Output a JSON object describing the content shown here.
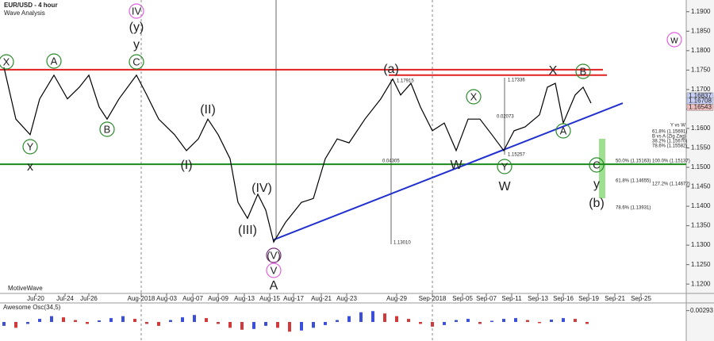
{
  "chart_data": [
    {
      "type": "line",
      "title": "EUR/USD - 4 hour",
      "subtitle": "Wave Analysis",
      "watermark": "MotiveWave",
      "x": [
        1,
        4,
        7.6,
        10,
        13.6,
        17,
        20,
        22.4,
        25,
        27,
        30,
        34.4,
        37,
        40,
        44,
        47,
        50,
        52.4,
        55,
        58,
        60,
        62.4,
        65,
        67,
        69,
        72,
        76,
        79,
        82,
        85,
        88,
        92,
        96,
        99,
        101,
        103.6,
        106,
        109,
        112,
        115,
        118,
        121,
        124,
        127,
        129.6,
        132.4,
        136,
        138,
        140,
        142,
        145,
        147,
        149
      ],
      "series": [
        {
          "color": "#000000",
          "values": [
            1.1757,
            1.1624,
            1.1584,
            1.1676,
            1.1737,
            1.1676,
            1.1706,
            1.1737,
            1.1655,
            1.1624,
            1.1676,
            1.1737,
            1.1686,
            1.1624,
            1.1584,
            1.1543,
            1.1573,
            1.1624,
            1.1584,
            1.1522,
            1.141,
            1.1369,
            1.1431,
            1.139,
            1.1308,
            1.1359,
            1.141,
            1.142,
            1.1522,
            1.1573,
            1.1563,
            1.1624,
            1.1676,
            1.1727,
            1.1686,
            1.1716,
            1.1655,
            1.1594,
            1.1614,
            1.1543,
            1.1624,
            1.1624,
            1.1584,
            1.1543,
            1.1594,
            1.1604,
            1.1635,
            1.1706,
            1.1716,
            1.1614,
            1.1686,
            1.1706,
            1.1665
          ]
        }
      ],
      "xlim": [
        0,
        173
      ],
      "ylim": [
        1.118,
        1.1922
      ],
      "xticks": [
        {
          "value": 9,
          "label": "Jul-20"
        },
        {
          "value": 16.4,
          "label": "Jul-24"
        },
        {
          "value": 22.4,
          "label": "Jul-26"
        },
        {
          "value": 35.6,
          "label": "Aug-2018"
        },
        {
          "value": 42,
          "label": "Aug-03"
        },
        {
          "value": 48.6,
          "label": "Aug-07"
        },
        {
          "value": 55,
          "label": "Aug-09"
        },
        {
          "value": 61.6,
          "label": "Aug-13"
        },
        {
          "value": 68,
          "label": "Aug-15"
        },
        {
          "value": 74,
          "label": "Aug-17"
        },
        {
          "value": 81,
          "label": "Aug-21"
        },
        {
          "value": 87.4,
          "label": "Aug-23"
        },
        {
          "value": 100,
          "label": "Aug-29"
        },
        {
          "value": 109,
          "label": "Sep-2018"
        },
        {
          "value": 116.6,
          "label": "Sep-05"
        },
        {
          "value": 122.6,
          "label": "Sep-07"
        },
        {
          "value": 129,
          "label": "Sep-11"
        },
        {
          "value": 135.6,
          "label": "Sep-13"
        },
        {
          "value": 142,
          "label": "Sep-16"
        },
        {
          "value": 148.4,
          "label": "Sep-19"
        },
        {
          "value": 155,
          "label": "Sep-21"
        },
        {
          "value": 161.6,
          "label": "Sep-25"
        }
      ],
      "yticks": [
        {
          "value": 1.12,
          "label": "1.1200"
        },
        {
          "value": 1.125,
          "label": "1.1250"
        },
        {
          "value": 1.13,
          "label": "1.1300"
        },
        {
          "value": 1.135,
          "label": "1.1350"
        },
        {
          "value": 1.14,
          "label": "1.1400"
        },
        {
          "value": 1.145,
          "label": "1.1450"
        },
        {
          "value": 1.15,
          "label": "1.1500"
        },
        {
          "value": 1.155,
          "label": "1.1550"
        },
        {
          "value": 1.16,
          "label": "1.1600"
        },
        {
          "value": 1.165,
          "label": "1.1650"
        },
        {
          "value": 1.17,
          "label": "1.1700"
        },
        {
          "value": 1.175,
          "label": "1.1750"
        },
        {
          "value": 1.18,
          "label": "1.1800"
        },
        {
          "value": 1.185,
          "label": "1.1850"
        },
        {
          "value": 1.19,
          "label": "1.1900"
        }
      ],
      "price_tags": [
        1.16837,
        1.16708,
        1.16543
      ],
      "lines": [
        {
          "color": "#e02020",
          "x": [
            0,
            152
          ],
          "y": [
            1.1751,
            1.1751
          ]
        },
        {
          "color": "#e02020",
          "x": [
            98,
            153
          ],
          "y": [
            1.1737,
            1.1737
          ]
        },
        {
          "color": "#1a8a1a",
          "x": [
            0,
            173
          ],
          "y": [
            1.1508,
            1.1508
          ]
        },
        {
          "color": "#2030d0",
          "x": [
            69,
            157
          ],
          "y": [
            1.1314,
            1.1665
          ]
        }
      ],
      "wave_labels": [
        "IV",
        "(y)",
        "y",
        "C",
        "X",
        "A",
        "Y",
        "x",
        "B",
        "(II)",
        "(I)",
        "(IV)",
        "(III)",
        "(V)",
        "V",
        "A",
        "(a)",
        "X",
        "B",
        "X",
        "W",
        "Y",
        "W",
        "A",
        "w",
        "C",
        "y",
        "(b)"
      ],
      "fib_labels": [
        "Y vs W",
        "61.8% (1.15691)",
        "B vs A (Zig Zag)",
        "38.2% (1.15670)",
        "78.6% (1.15582)",
        "50.0% (1.15163)",
        "100.0% (1.15137)",
        "61.8% (1.14655)",
        "127.2% (1.14672)",
        "78.6% (1.13931)"
      ],
      "measure_labels": [
        "1.17915",
        "1.17336",
        "0.02073",
        "1.15257",
        "0.04305",
        "1.13010"
      ]
    },
    {
      "type": "bar",
      "title": "Awesome Osc(34,5)",
      "x": [
        1,
        4,
        7,
        10,
        13,
        16,
        19,
        22,
        25,
        28,
        31,
        34,
        37,
        40,
        43,
        46,
        49,
        52,
        55,
        58,
        61,
        64,
        67,
        70,
        73,
        76,
        79,
        82,
        85,
        88,
        91,
        94,
        97,
        100,
        103,
        106,
        109,
        112,
        115,
        118,
        121,
        124,
        127,
        130,
        133,
        136,
        139,
        142,
        145,
        148
      ],
      "values": [
        -0.001,
        -0.0015,
        -0.0005,
        0.0008,
        0.0015,
        0.0012,
        0.0005,
        -0.0005,
        0.0004,
        0.001,
        0.0015,
        0.0008,
        -0.0005,
        -0.001,
        0.0005,
        0.0012,
        0.0018,
        0.001,
        -0.0005,
        -0.0015,
        -0.002,
        -0.0018,
        -0.001,
        -0.0015,
        -0.0025,
        -0.0022,
        -0.0015,
        -0.0008,
        0.0005,
        0.0015,
        0.0025,
        0.0028,
        0.0022,
        0.0015,
        0.0008,
        -0.0005,
        -0.0012,
        -0.0008,
        0.0005,
        0.0008,
        -0.0005,
        0.0003,
        0.0008,
        0.001,
        0.0005,
        -0.0003,
        0.0006,
        0.001,
        0.0008,
        -0.0005
      ],
      "up_color": "#3b4fd8",
      "down_color": "#d03a3a",
      "xlim": [
        0,
        173
      ],
      "ylim": [
        -0.0045,
        0.0045
      ],
      "yticks": [
        0.00293
      ]
    }
  ]
}
